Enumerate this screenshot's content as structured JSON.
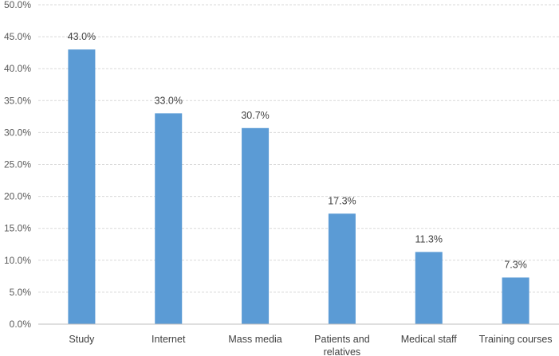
{
  "chart_data": {
    "type": "bar",
    "categories": [
      "Study",
      "Internet",
      "Mass media",
      "Patients and relatives",
      "Medical staff",
      "Training courses"
    ],
    "category_lines": [
      [
        "Study"
      ],
      [
        "Internet"
      ],
      [
        "Mass media"
      ],
      [
        "Patients and",
        "relatives"
      ],
      [
        "Medical staff"
      ],
      [
        "Training courses"
      ]
    ],
    "values": [
      43.0,
      33.0,
      30.7,
      17.3,
      11.3,
      7.3
    ],
    "data_labels": [
      "43.0%",
      "33.0%",
      "30.7%",
      "17.3%",
      "11.3%",
      "7.3%"
    ],
    "y_ticks": [
      0,
      5,
      10,
      15,
      20,
      25,
      30,
      35,
      40,
      45,
      50
    ],
    "y_tick_labels": [
      "0.0%",
      "5.0%",
      "10.0%",
      "15.0%",
      "20.0%",
      "25.0%",
      "30.0%",
      "35.0%",
      "40.0%",
      "45.0%",
      "50.0%"
    ],
    "ylim": [
      0,
      50
    ],
    "grid": true,
    "bar_color": "#5b9bd5",
    "title": "",
    "xlabel": "",
    "ylabel": ""
  }
}
